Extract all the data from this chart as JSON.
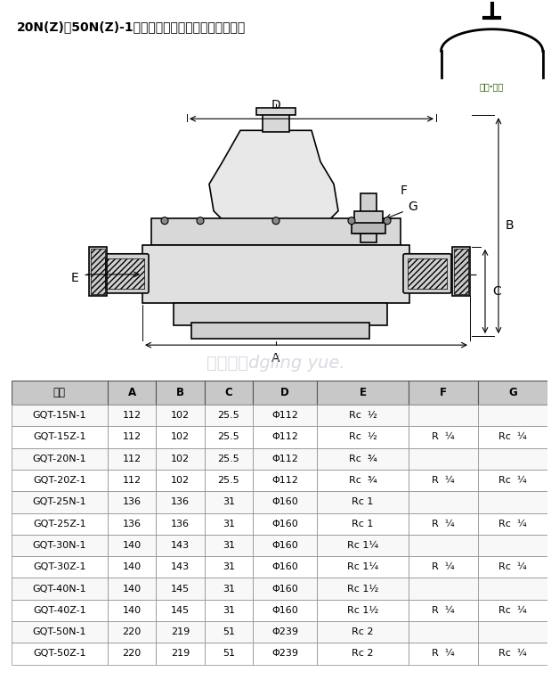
{
  "title": "20N(Z)～50N(Z)-1型调压器外型及连接尺寸按图和表",
  "logo_text": "浙江·亚工",
  "table_headers": [
    "型号",
    "A",
    "B",
    "C",
    "D",
    "E",
    "F",
    "G"
  ],
  "table_rows": [
    [
      "GQT-15N-1",
      "112",
      "102",
      "25.5",
      "Φ112",
      "Rc  ½",
      "",
      ""
    ],
    [
      "GQT-15Z-1",
      "112",
      "102",
      "25.5",
      "Φ112",
      "Rc  ½",
      "R  ¼",
      "Rc  ¼"
    ],
    [
      "GQT-20N-1",
      "112",
      "102",
      "25.5",
      "Φ112",
      "Rc  ¾",
      "",
      ""
    ],
    [
      "GQT-20Z-1",
      "112",
      "102",
      "25.5",
      "Φ112",
      "Rc  ¾",
      "R  ¼",
      "Rc  ¼"
    ],
    [
      "GQT-25N-1",
      "136",
      "136",
      "31",
      "Φ160",
      "Rc 1",
      "",
      ""
    ],
    [
      "GQT-25Z-1",
      "136",
      "136",
      "31",
      "Φ160",
      "Rc 1",
      "R  ¼",
      "Rc  ¼"
    ],
    [
      "GQT-30N-1",
      "140",
      "143",
      "31",
      "Φ160",
      "Rc 1¼",
      "",
      ""
    ],
    [
      "GQT-30Z-1",
      "140",
      "143",
      "31",
      "Φ160",
      "Rc 1¼",
      "R  ¼",
      "Rc  ¼"
    ],
    [
      "GQT-40N-1",
      "140",
      "145",
      "31",
      "Φ160",
      "Rc 1½",
      "",
      ""
    ],
    [
      "GQT-40Z-1",
      "140",
      "145",
      "31",
      "Φ160",
      "Rc 1½",
      "R  ¼",
      "Rc  ¼"
    ],
    [
      "GQT-50N-1",
      "220",
      "219",
      "51",
      "Φ239",
      "Rc 2",
      "",
      ""
    ],
    [
      "GQT-50Z-1",
      "220",
      "219",
      "51",
      "Φ239",
      "Rc 2",
      "R  ¼",
      "Rc  ¼"
    ]
  ],
  "bg_color": "#ffffff",
  "table_header_bg": "#d0d0d0",
  "table_row_alt": "#f5f5f5",
  "table_border": "#888888",
  "watermark_text": "东莞灵越dgling yue.",
  "diagram_labels": [
    "A",
    "B",
    "C",
    "D",
    "E",
    "F",
    "G"
  ]
}
